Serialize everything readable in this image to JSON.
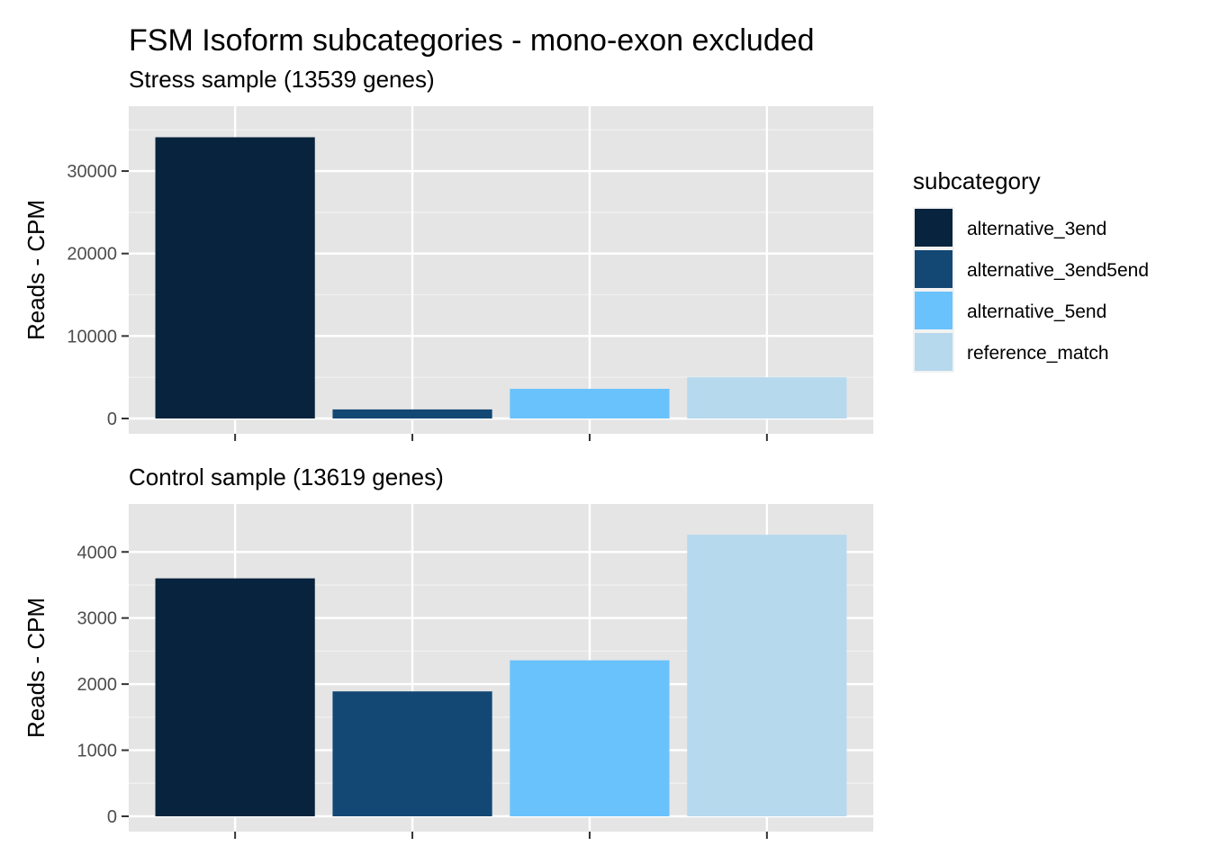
{
  "title": "FSM Isoform subcategories - mono-exon excluded",
  "legend": {
    "title": "subcategory",
    "items": [
      {
        "label": "alternative_3end",
        "color": "#08233d"
      },
      {
        "label": "alternative_3end5end",
        "color": "#134874"
      },
      {
        "label": "alternative_5end",
        "color": "#6ac2fd"
      },
      {
        "label": "reference_match",
        "color": "#b6d9ee"
      }
    ]
  },
  "chart_data": [
    {
      "type": "bar",
      "title": "Stress sample (13539 genes)",
      "ylabel": "Reads - CPM",
      "xlabel": "",
      "categories": [
        "alternative_3end",
        "alternative_3end5end",
        "alternative_5end",
        "reference_match"
      ],
      "values": [
        34100,
        1100,
        3600,
        5000
      ],
      "ylim": [
        0,
        35900
      ],
      "yticks": [
        0,
        10000,
        20000,
        30000
      ],
      "ytick_labels": [
        "0",
        "10000",
        "20000",
        "30000"
      ],
      "grid": true
    },
    {
      "type": "bar",
      "title": "Control sample (13619 genes)",
      "ylabel": "Reads - CPM",
      "xlabel": "",
      "categories": [
        "alternative_3end",
        "alternative_3end5end",
        "alternative_5end",
        "reference_match"
      ],
      "values": [
        3600,
        1890,
        2360,
        4260
      ],
      "ylim": [
        0,
        4480
      ],
      "yticks": [
        0,
        1000,
        2000,
        3000,
        4000
      ],
      "ytick_labels": [
        "0",
        "1000",
        "2000",
        "3000",
        "4000"
      ],
      "grid": true
    }
  ]
}
